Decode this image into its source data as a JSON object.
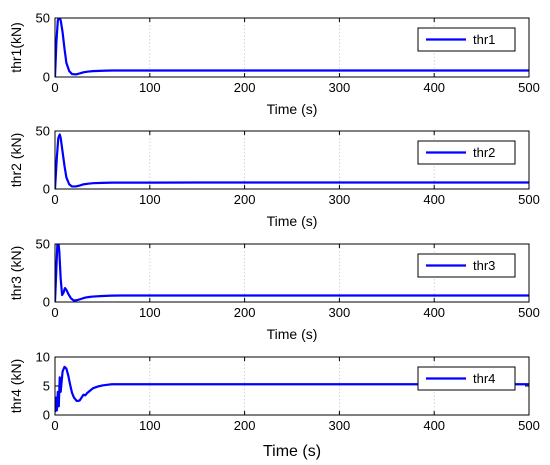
{
  "chart_data": [
    {
      "type": "line",
      "xlabel": "Time (s)",
      "ylabel": "thr1(kN)",
      "xlim": [
        0,
        500
      ],
      "ylim": [
        0,
        50
      ],
      "xticks": [
        "0",
        "100",
        "200",
        "300",
        "400",
        "500"
      ],
      "yticks": [
        "0",
        "50"
      ],
      "grid": true,
      "legend_position": "top-right",
      "series": [
        {
          "name": "thr1",
          "color": "#0000ff",
          "x": [
            0,
            1.5,
            3,
            4,
            5,
            6,
            8,
            10,
            12,
            15,
            18,
            22,
            26,
            30,
            35,
            40,
            50,
            60,
            70,
            80,
            100,
            150,
            200,
            250,
            300,
            350,
            400,
            450,
            500
          ],
          "y": [
            0,
            30,
            48,
            50,
            50,
            48,
            38,
            24,
            12,
            5,
            2.5,
            2.2,
            3,
            4,
            4.6,
            5,
            5.3,
            5.5,
            5.5,
            5.5,
            5.5,
            5.5,
            5.5,
            5.5,
            5.5,
            5.5,
            5.5,
            5.5,
            5.5
          ]
        }
      ]
    },
    {
      "type": "line",
      "xlabel": "Time (s)",
      "ylabel": "thr2 (kN)",
      "xlim": [
        0,
        500
      ],
      "ylim": [
        0,
        50
      ],
      "xticks": [
        "0",
        "100",
        "200",
        "300",
        "400",
        "500"
      ],
      "yticks": [
        "0",
        "50"
      ],
      "grid": true,
      "legend_position": "top-right",
      "series": [
        {
          "name": "thr2",
          "color": "#0000ff",
          "x": [
            0,
            2,
            3.5,
            5,
            6,
            8,
            10,
            12,
            15,
            18,
            22,
            26,
            30,
            35,
            40,
            50,
            60,
            70,
            80,
            100,
            150,
            200,
            250,
            300,
            350,
            400,
            450,
            500
          ],
          "y": [
            0,
            28,
            44,
            47,
            44,
            32,
            20,
            10,
            4,
            2.2,
            2.2,
            3,
            4,
            4.6,
            5,
            5.3,
            5.5,
            5.5,
            5.5,
            5.5,
            5.6,
            5.6,
            5.6,
            5.6,
            5.6,
            5.6,
            5.6,
            5.6
          ]
        }
      ]
    },
    {
      "type": "line",
      "xlabel": "Time (s)",
      "ylabel": "thr3 (kN)",
      "xlim": [
        0,
        500
      ],
      "ylim": [
        0,
        50
      ],
      "xticks": [
        "0",
        "100",
        "200",
        "300",
        "400",
        "500"
      ],
      "yticks": [
        "0",
        "50"
      ],
      "grid": true,
      "legend_position": "top-right",
      "series": [
        {
          "name": "thr3",
          "color": "#0000ff",
          "x": [
            0,
            1.5,
            2.5,
            3.5,
            4.5,
            6,
            7.5,
            9,
            10.5,
            12,
            14,
            17,
            20,
            24,
            28,
            32,
            36,
            40,
            50,
            60,
            70,
            80,
            100,
            150,
            200,
            250,
            300,
            350,
            400,
            450,
            500
          ],
          "y": [
            0,
            30,
            50,
            52,
            44,
            20,
            6,
            8,
            12,
            10.5,
            7,
            3,
            1.2,
            1.8,
            2.8,
            3.8,
            4.3,
            4.7,
            5.2,
            5.5,
            5.6,
            5.6,
            5.6,
            5.6,
            5.6,
            5.6,
            5.6,
            5.6,
            5.6,
            5.6,
            5.6
          ]
        }
      ]
    },
    {
      "type": "line",
      "xlabel": "Time (s)",
      "ylabel": "thr4 (kN)",
      "xlim": [
        0,
        500
      ],
      "ylim": [
        0,
        10
      ],
      "xticks": [
        "0",
        "100",
        "200",
        "300",
        "400",
        "500"
      ],
      "yticks": [
        "0",
        "5",
        "10"
      ],
      "grid": true,
      "legend_position": "top-right",
      "series": [
        {
          "name": "thr4",
          "color": "#0000ff",
          "x": [
            0,
            1,
            2,
            3,
            4,
            5,
            6,
            8,
            10,
            12,
            14,
            16,
            18,
            20,
            23,
            26,
            28,
            30,
            32,
            34,
            37,
            40,
            45,
            50,
            55,
            60,
            65,
            70,
            80,
            100,
            150,
            200,
            250,
            300,
            350,
            400,
            450,
            500
          ],
          "y": [
            0.5,
            3,
            0.8,
            4,
            1.5,
            6.5,
            4,
            7.5,
            8.3,
            8,
            6.8,
            5.2,
            3.8,
            3,
            2.4,
            2.5,
            3,
            3.5,
            3.4,
            3.8,
            4.2,
            4.6,
            4.9,
            5.1,
            5.2,
            5.3,
            5.3,
            5.3,
            5.3,
            5.3,
            5.3,
            5.3,
            5.3,
            5.3,
            5.3,
            5.3,
            5.3,
            5.3
          ]
        }
      ]
    }
  ]
}
